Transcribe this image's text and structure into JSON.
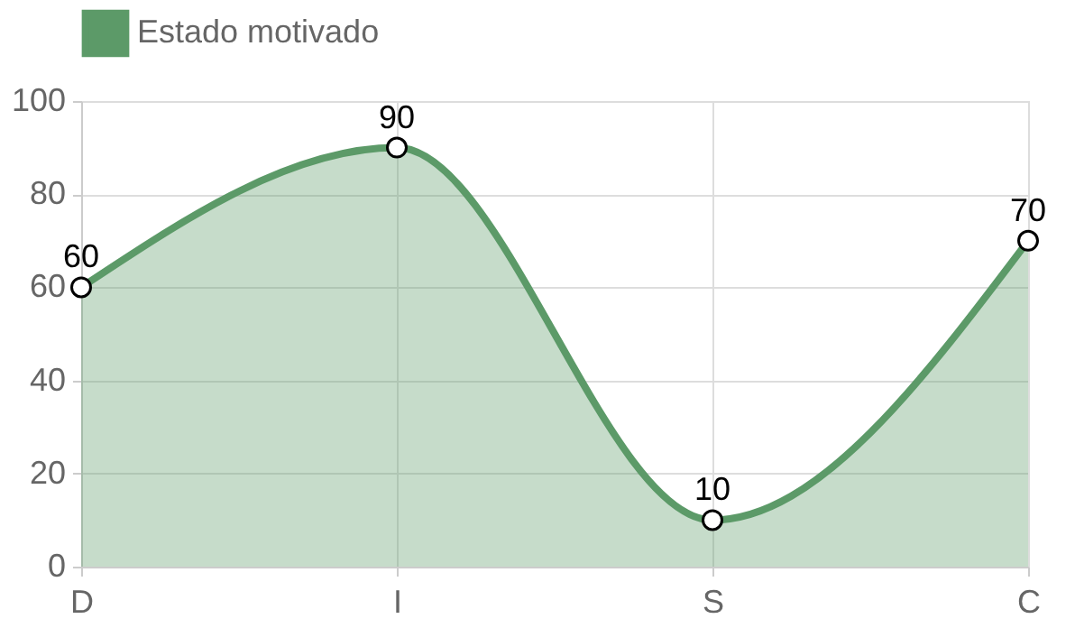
{
  "chart_data": {
    "type": "area",
    "categories": [
      "D",
      "I",
      "S",
      "C"
    ],
    "series": [
      {
        "name": "Estado motivado",
        "color": "#5c9a68",
        "values": [
          60,
          90,
          10,
          70
        ]
      }
    ],
    "ylim": [
      0,
      100
    ],
    "yticks": [
      0,
      20,
      40,
      60,
      80,
      100
    ],
    "grid": true,
    "legend": "top",
    "data_labels": true,
    "marker": "circle",
    "line_style": "solid"
  }
}
